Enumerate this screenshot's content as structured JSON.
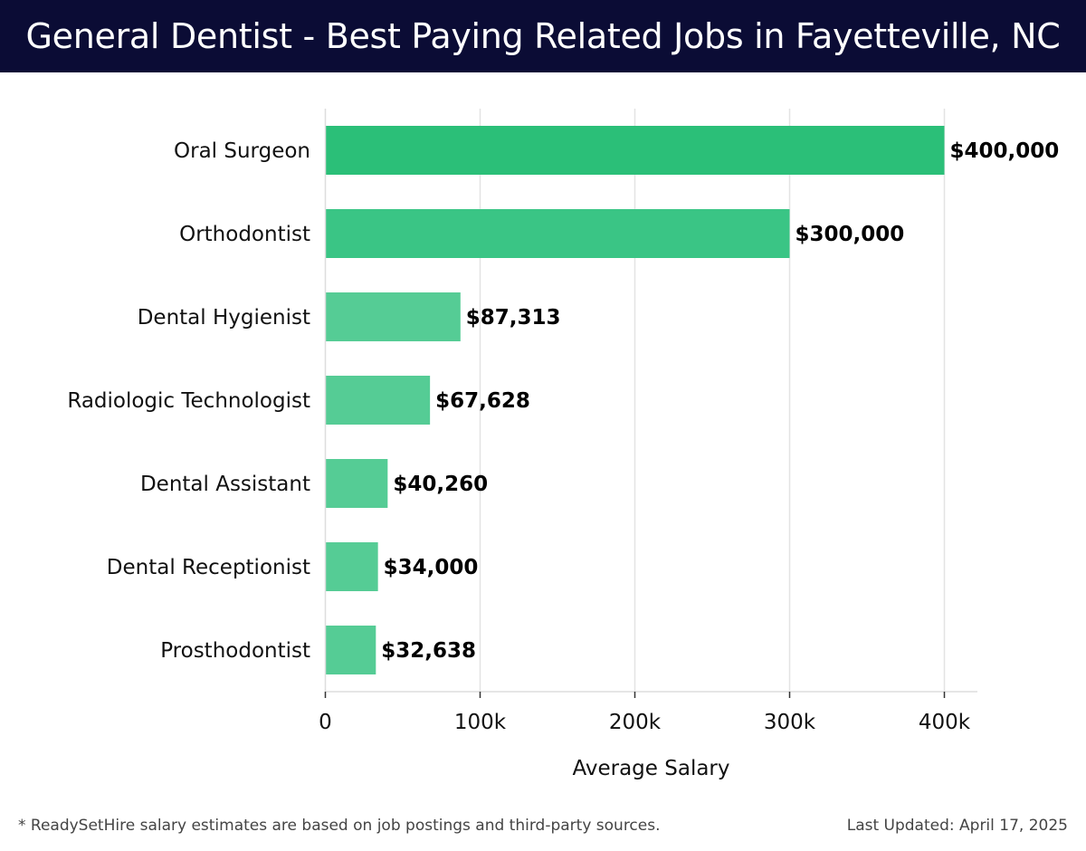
{
  "header": {
    "title": "General Dentist - Best Paying Related Jobs in Fayetteville, NC"
  },
  "footer": {
    "footnote": "* ReadySetHire salary estimates are based on job postings and third-party sources.",
    "last_updated": "Last Updated: April 17, 2025"
  },
  "chart_data": {
    "type": "bar",
    "orientation": "horizontal",
    "title": "General Dentist - Best Paying Related Jobs in Fayetteville, NC",
    "xlabel": "Average Salary",
    "ylabel": "",
    "categories": [
      "Oral Surgeon",
      "Orthodontist",
      "Dental Hygienist",
      "Radiologic Technologist",
      "Dental Assistant",
      "Dental Receptionist",
      "Prosthodontist"
    ],
    "values": [
      400000,
      300000,
      87313,
      67628,
      40260,
      34000,
      32638
    ],
    "value_labels": [
      "$400,000",
      "$300,000",
      "$87,313",
      "$67,628",
      "$40,260",
      "$34,000",
      "$32,638"
    ],
    "xlim": [
      0,
      420000
    ],
    "xticks": [
      0,
      100000,
      200000,
      300000,
      400000
    ],
    "xtick_labels": [
      "0",
      "100k",
      "200k",
      "300k",
      "400k"
    ],
    "grid": true,
    "colors": {
      "bar_dark": "#2bbf78",
      "bar_mid": "#3ac585",
      "bar_light": "#55cc95",
      "grid": "#e3e3e3",
      "header_bg": "#0b0c35"
    }
  }
}
